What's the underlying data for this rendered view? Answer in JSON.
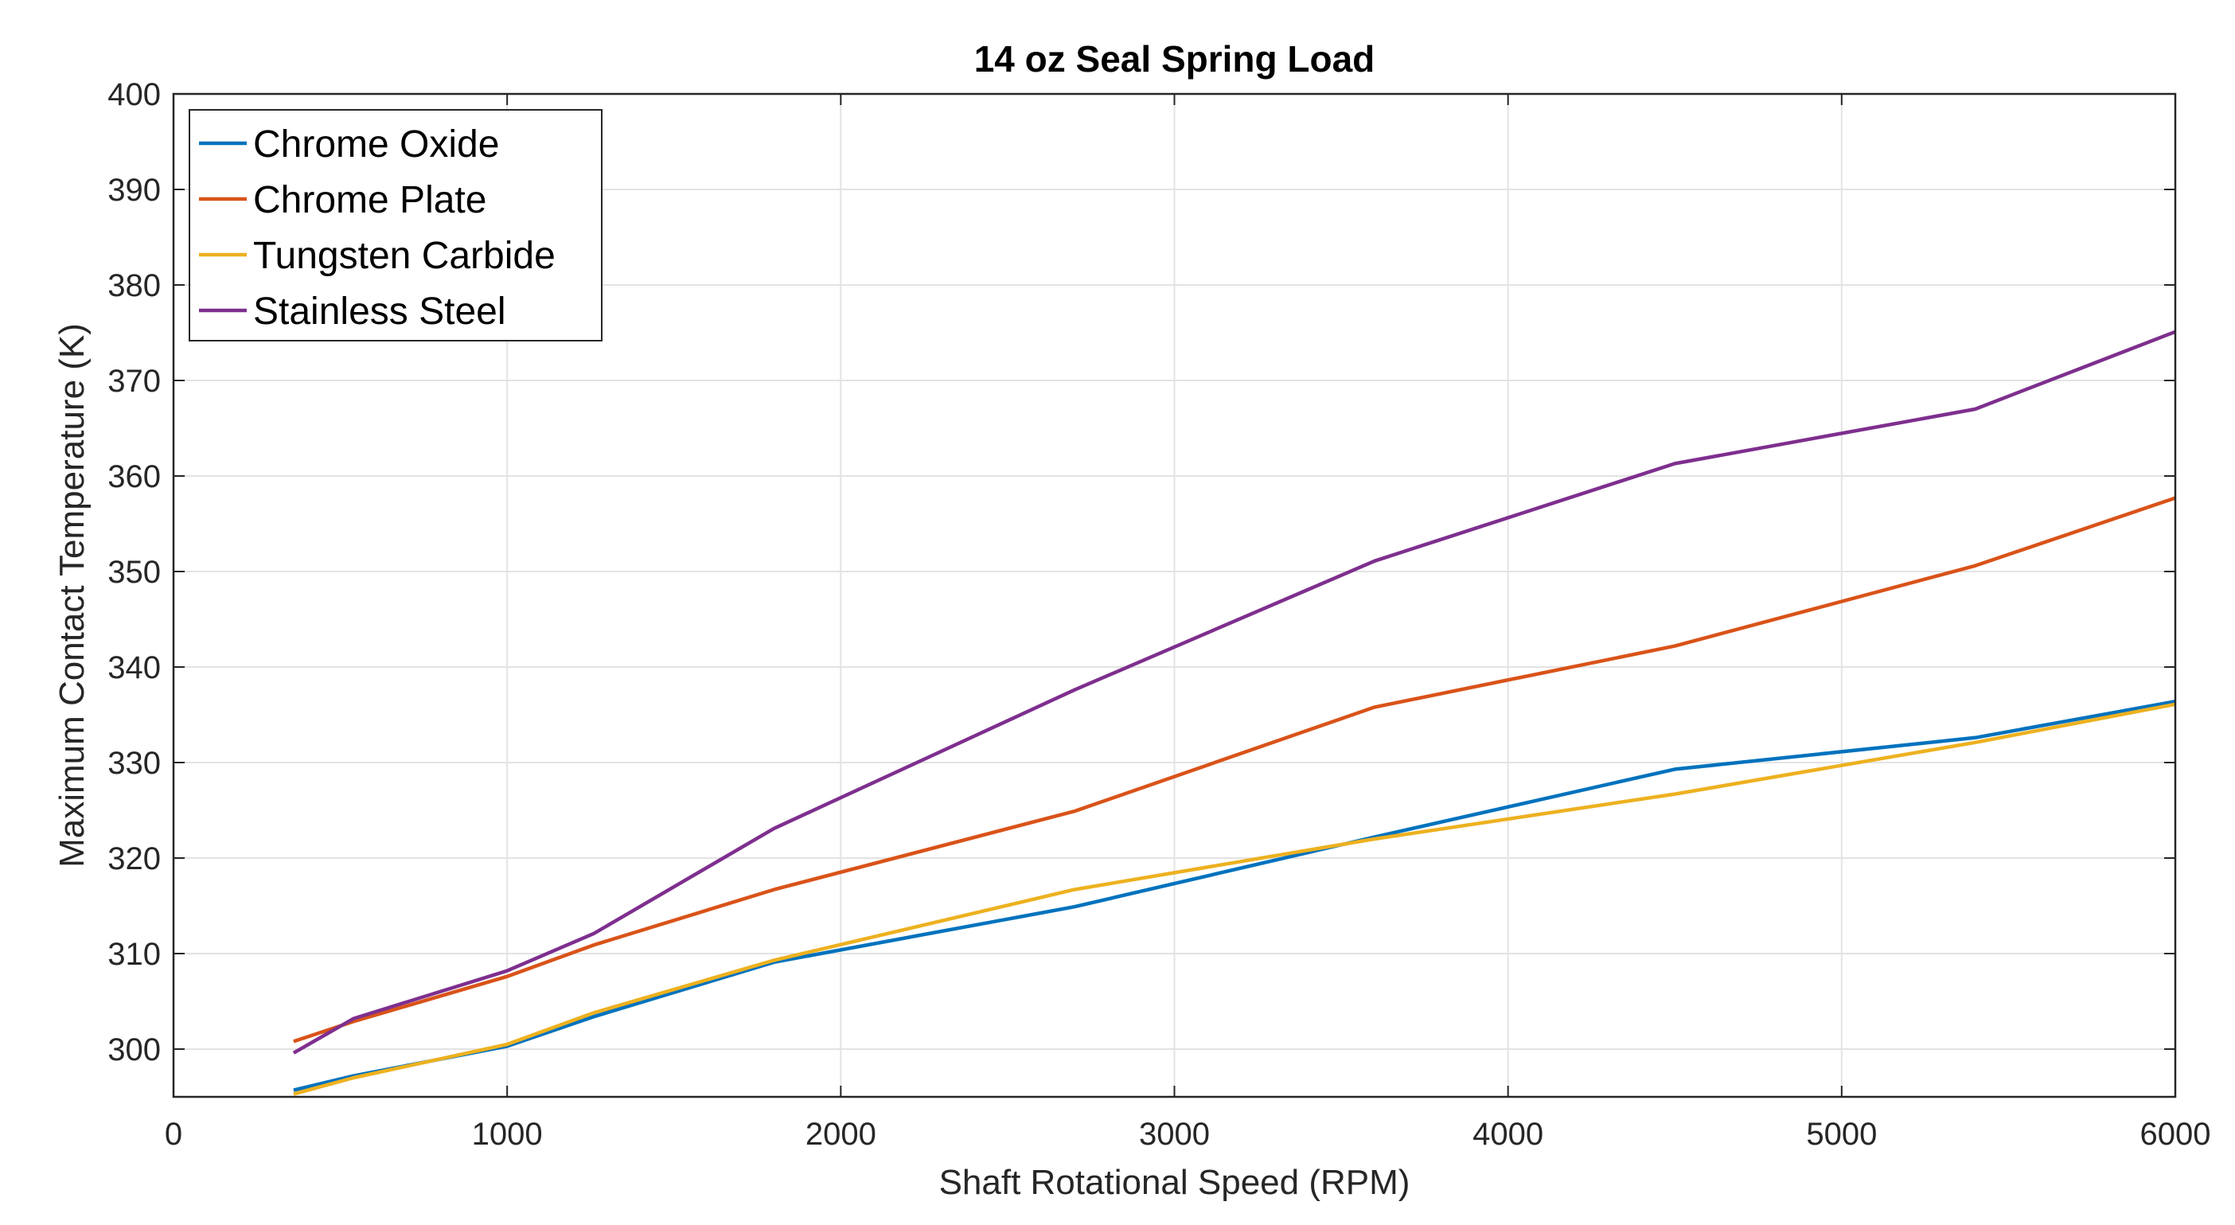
{
  "chart_data": {
    "type": "line",
    "title": "14 oz Seal Spring Load",
    "xlabel": "Shaft Rotational Speed (RPM)",
    "ylabel": "Maximum Contact Temperature (K)",
    "xlim": [
      0,
      6000
    ],
    "ylim": [
      295,
      400
    ],
    "xticks": [
      0,
      1000,
      2000,
      3000,
      4000,
      5000,
      6000
    ],
    "yticks": [
      300,
      310,
      320,
      330,
      340,
      350,
      360,
      370,
      380,
      390,
      400
    ],
    "grid": true,
    "legend_position": "top-left",
    "series": [
      {
        "name": "Chrome Oxide",
        "color": "#0072BD",
        "x": [
          360,
          540,
          1000,
          1260,
          1800,
          2700,
          3600,
          4500,
          5400,
          6000
        ],
        "y": [
          295.7,
          297.2,
          300.3,
          303.4,
          309.1,
          314.9,
          322.2,
          329.3,
          332.6,
          336.4
        ]
      },
      {
        "name": "Chrome Plate",
        "color": "#D95319",
        "x": [
          360,
          540,
          1000,
          1260,
          1800,
          2700,
          3600,
          4500,
          5400,
          6000
        ],
        "y": [
          300.8,
          302.9,
          307.6,
          310.9,
          316.7,
          324.9,
          335.8,
          342.2,
          350.6,
          357.7
        ]
      },
      {
        "name": "Tungsten Carbide",
        "color": "#EDB120",
        "x": [
          360,
          540,
          1000,
          1260,
          1800,
          2700,
          3600,
          4500,
          5400,
          6000
        ],
        "y": [
          295.3,
          297.0,
          300.5,
          303.8,
          309.3,
          316.7,
          322.0,
          326.7,
          332.1,
          336.1
        ]
      },
      {
        "name": "Stainless Steel",
        "color": "#7E2F8E",
        "x": [
          360,
          540,
          1000,
          1260,
          1800,
          2700,
          3600,
          4500,
          5400,
          6000
        ],
        "y": [
          299.6,
          303.2,
          308.2,
          312.1,
          323.1,
          337.6,
          351.1,
          361.3,
          367.0,
          375.1
        ]
      }
    ]
  }
}
